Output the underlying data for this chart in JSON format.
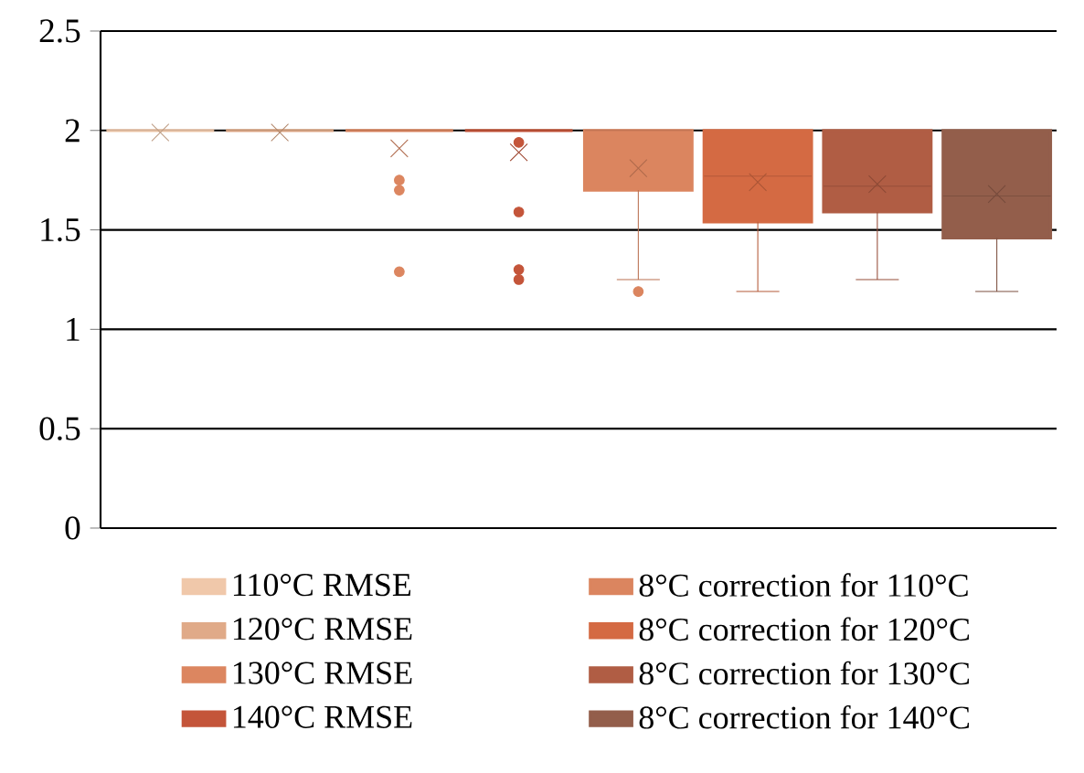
{
  "chart_data": {
    "type": "box",
    "categories": [
      null
    ],
    "ylim": [
      0,
      2.5
    ],
    "yticks": [
      0,
      0.5,
      1,
      1.5,
      2,
      2.5
    ],
    "grid": "y",
    "legend": "bottom",
    "series": [
      {
        "name": "110°C RMSE",
        "color": "#f0c8aa",
        "boxes": [
          {
            "low": 2,
            "q1": 2,
            "median": 2,
            "q3": 2,
            "high": 2,
            "mean": 1.99
          }
        ]
      },
      {
        "name": "120°C RMSE",
        "color": "#e0aa88",
        "boxes": [
          {
            "low": 2,
            "q1": 2,
            "median": 2,
            "q3": 2,
            "high": 2,
            "mean": 1.99
          }
        ]
      },
      {
        "name": "130°C RMSE",
        "color": "#dc8660",
        "boxes": [
          {
            "low": 2,
            "q1": 2,
            "median": 2,
            "q3": 2,
            "high": 2,
            "mean": 1.91,
            "outliers": [
              1.75,
              1.7,
              1.29
            ]
          }
        ]
      },
      {
        "name": "140°C RMSE",
        "color": "#c4553a",
        "boxes": [
          {
            "low": 2,
            "q1": 2,
            "median": 2,
            "q3": 2,
            "high": 2,
            "mean": 1.89,
            "outliers": [
              1.94,
              1.59,
              1.3,
              1.25
            ]
          }
        ]
      },
      {
        "name": "8°C correction for 110°C",
        "color": "#db855f",
        "boxes": [
          {
            "low": 1.25,
            "q1": 1.7,
            "median": 2,
            "q3": 2,
            "high": 2,
            "mean": 1.81,
            "outliers": [
              1.19
            ]
          }
        ]
      },
      {
        "name": "8°C correction for 120°C",
        "color": "#d46a43",
        "boxes": [
          {
            "low": 1.19,
            "q1": 1.54,
            "median": 1.77,
            "q3": 2,
            "high": 2,
            "mean": 1.74
          }
        ]
      },
      {
        "name": "8°C correction for 130°C",
        "color": "#b05d44",
        "boxes": [
          {
            "low": 1.25,
            "q1": 1.59,
            "median": 1.72,
            "q3": 2,
            "high": 2,
            "mean": 1.73
          }
        ]
      },
      {
        "name": "8°C correction for 140°C",
        "color": "#935e4b",
        "boxes": [
          {
            "low": 1.19,
            "q1": 1.46,
            "median": 1.67,
            "q3": 2,
            "high": 2,
            "mean": 1.68
          }
        ]
      }
    ]
  }
}
